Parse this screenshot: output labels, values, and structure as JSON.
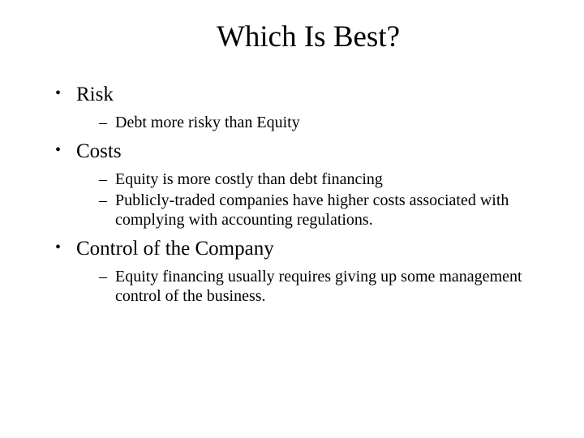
{
  "title": "Which Is Best?",
  "items": [
    {
      "label": "Risk",
      "subitems": [
        "Debt more risky than Equity"
      ]
    },
    {
      "label": "Costs",
      "subitems": [
        "Equity is more costly than debt financing",
        "Publicly-traded companies have higher costs associated with complying with accounting regulations."
      ]
    },
    {
      "label": "Control of the Company",
      "subitems": [
        "Equity financing usually requires giving up some management control of the business."
      ]
    }
  ],
  "style": {
    "background_color": "#ffffff",
    "text_color": "#000000",
    "font_family": "Times New Roman",
    "title_fontsize": 37,
    "l1_fontsize": 25,
    "l2_fontsize": 20
  }
}
